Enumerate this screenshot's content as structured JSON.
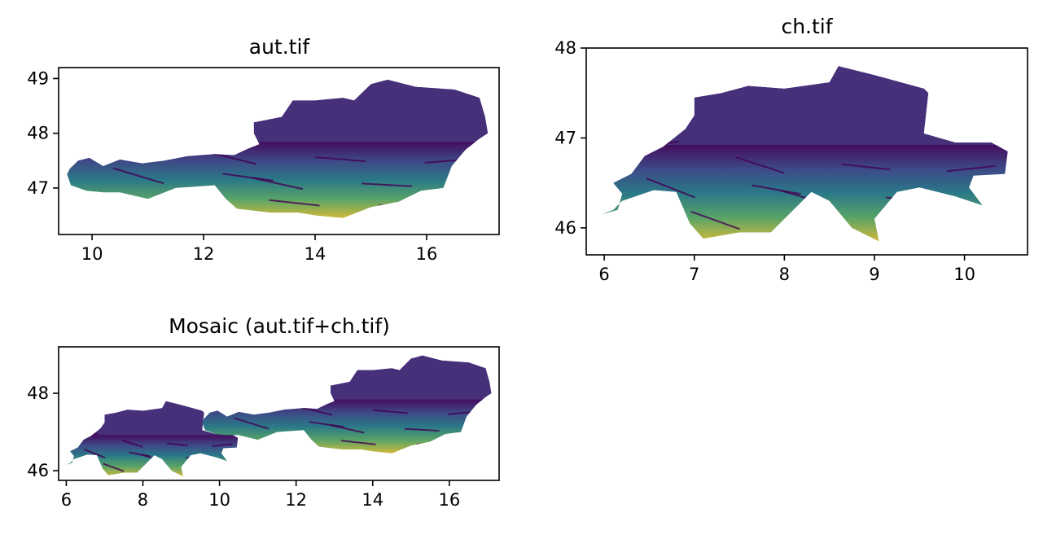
{
  "colors": {
    "colormap": "viridis",
    "viridis_stops": [
      "#440154",
      "#3b528b",
      "#21918c",
      "#5ec962",
      "#fde725"
    ],
    "lowland_tone": "#46307a",
    "background": "#ffffff"
  },
  "panels": [
    {
      "title": "aut.tif",
      "xlim": [
        9.4,
        17.3
      ],
      "ylim": [
        46.15,
        49.2
      ],
      "xticks": [
        10,
        12,
        14,
        16
      ],
      "yticks": [
        47,
        48,
        49
      ],
      "shapes": [
        [
          [
            9.55,
            47.25
          ],
          [
            9.6,
            47.35
          ],
          [
            9.75,
            47.5
          ],
          [
            9.95,
            47.55
          ],
          [
            10.2,
            47.4
          ],
          [
            10.5,
            47.52
          ],
          [
            10.9,
            47.45
          ],
          [
            11.3,
            47.5
          ],
          [
            11.7,
            47.58
          ],
          [
            12.2,
            47.62
          ],
          [
            12.55,
            47.6
          ],
          [
            12.8,
            47.72
          ],
          [
            13.0,
            47.8
          ],
          [
            12.9,
            48.0
          ],
          [
            12.9,
            48.2
          ],
          [
            13.4,
            48.3
          ],
          [
            13.6,
            48.6
          ],
          [
            14.0,
            48.6
          ],
          [
            14.5,
            48.65
          ],
          [
            14.7,
            48.6
          ],
          [
            15.0,
            48.9
          ],
          [
            15.3,
            48.98
          ],
          [
            15.8,
            48.85
          ],
          [
            16.5,
            48.8
          ],
          [
            16.95,
            48.65
          ],
          [
            17.05,
            48.3
          ],
          [
            17.1,
            48.0
          ],
          [
            16.95,
            47.9
          ],
          [
            16.7,
            47.7
          ],
          [
            16.45,
            47.4
          ],
          [
            16.3,
            47.0
          ],
          [
            15.9,
            46.95
          ],
          [
            15.5,
            46.75
          ],
          [
            15.0,
            46.65
          ],
          [
            14.5,
            46.45
          ],
          [
            14.0,
            46.5
          ],
          [
            13.7,
            46.55
          ],
          [
            13.2,
            46.55
          ],
          [
            12.6,
            46.62
          ],
          [
            12.4,
            46.8
          ],
          [
            12.2,
            47.05
          ],
          [
            11.5,
            47.0
          ],
          [
            11.0,
            46.8
          ],
          [
            10.5,
            46.92
          ],
          [
            10.2,
            46.92
          ],
          [
            9.9,
            46.95
          ],
          [
            9.62,
            47.05
          ]
        ]
      ]
    },
    {
      "title": "ch.tif",
      "xlim": [
        5.8,
        10.7
      ],
      "ylim": [
        45.7,
        48.0
      ],
      "xticks": [
        6,
        7,
        8,
        9,
        10
      ],
      "yticks": [
        46,
        47,
        48
      ],
      "shapes": [
        [
          [
            5.97,
            46.15
          ],
          [
            6.15,
            46.2
          ],
          [
            6.2,
            46.38
          ],
          [
            6.1,
            46.5
          ],
          [
            6.3,
            46.6
          ],
          [
            6.45,
            46.8
          ],
          [
            6.65,
            46.9
          ],
          [
            6.9,
            47.1
          ],
          [
            7.0,
            47.25
          ],
          [
            7.0,
            47.45
          ],
          [
            7.3,
            47.5
          ],
          [
            7.6,
            47.58
          ],
          [
            8.0,
            47.55
          ],
          [
            8.5,
            47.62
          ],
          [
            8.6,
            47.8
          ],
          [
            9.0,
            47.7
          ],
          [
            9.55,
            47.55
          ],
          [
            9.6,
            47.5
          ],
          [
            9.55,
            47.05
          ],
          [
            9.9,
            46.95
          ],
          [
            10.3,
            46.95
          ],
          [
            10.48,
            46.85
          ],
          [
            10.45,
            46.6
          ],
          [
            10.1,
            46.58
          ],
          [
            10.05,
            46.45
          ],
          [
            10.2,
            46.25
          ],
          [
            9.9,
            46.35
          ],
          [
            9.5,
            46.45
          ],
          [
            9.25,
            46.4
          ],
          [
            9.0,
            46.1
          ],
          [
            9.05,
            45.85
          ],
          [
            8.75,
            46.0
          ],
          [
            8.5,
            46.3
          ],
          [
            8.3,
            46.4
          ],
          [
            7.85,
            45.95
          ],
          [
            7.5,
            45.95
          ],
          [
            7.1,
            45.88
          ],
          [
            6.95,
            46.05
          ],
          [
            6.8,
            46.4
          ],
          [
            6.55,
            46.42
          ],
          [
            6.2,
            46.3
          ],
          [
            6.1,
            46.2
          ]
        ]
      ]
    },
    {
      "title": "Mosaic (aut.tif+ch.tif)",
      "xlim": [
        5.8,
        17.3
      ],
      "ylim": [
        45.75,
        49.2
      ],
      "xticks": [
        6,
        8,
        10,
        12,
        14,
        16
      ],
      "yticks": [
        46,
        48
      ],
      "shapes": [
        [
          [
            5.97,
            46.15
          ],
          [
            6.15,
            46.2
          ],
          [
            6.2,
            46.38
          ],
          [
            6.1,
            46.5
          ],
          [
            6.3,
            46.6
          ],
          [
            6.45,
            46.8
          ],
          [
            6.65,
            46.9
          ],
          [
            6.9,
            47.1
          ],
          [
            7.0,
            47.25
          ],
          [
            7.0,
            47.45
          ],
          [
            7.3,
            47.5
          ],
          [
            7.6,
            47.58
          ],
          [
            8.0,
            47.55
          ],
          [
            8.5,
            47.62
          ],
          [
            8.6,
            47.8
          ],
          [
            9.0,
            47.7
          ],
          [
            9.55,
            47.55
          ],
          [
            9.6,
            47.5
          ],
          [
            9.55,
            47.05
          ],
          [
            9.9,
            46.95
          ],
          [
            10.3,
            46.95
          ],
          [
            10.48,
            46.85
          ],
          [
            10.45,
            46.6
          ],
          [
            10.1,
            46.58
          ],
          [
            10.05,
            46.45
          ],
          [
            10.2,
            46.25
          ],
          [
            9.9,
            46.35
          ],
          [
            9.5,
            46.45
          ],
          [
            9.25,
            46.4
          ],
          [
            9.0,
            46.1
          ],
          [
            9.05,
            45.85
          ],
          [
            8.75,
            46.0
          ],
          [
            8.5,
            46.3
          ],
          [
            8.3,
            46.4
          ],
          [
            7.85,
            45.95
          ],
          [
            7.5,
            45.95
          ],
          [
            7.1,
            45.88
          ],
          [
            6.95,
            46.05
          ],
          [
            6.8,
            46.4
          ],
          [
            6.55,
            46.42
          ],
          [
            6.2,
            46.3
          ],
          [
            6.1,
            46.2
          ]
        ],
        [
          [
            9.55,
            47.25
          ],
          [
            9.6,
            47.35
          ],
          [
            9.75,
            47.5
          ],
          [
            9.95,
            47.55
          ],
          [
            10.2,
            47.4
          ],
          [
            10.5,
            47.52
          ],
          [
            10.9,
            47.45
          ],
          [
            11.3,
            47.5
          ],
          [
            11.7,
            47.58
          ],
          [
            12.2,
            47.62
          ],
          [
            12.55,
            47.6
          ],
          [
            12.8,
            47.72
          ],
          [
            13.0,
            47.8
          ],
          [
            12.9,
            48.0
          ],
          [
            12.9,
            48.2
          ],
          [
            13.4,
            48.3
          ],
          [
            13.6,
            48.6
          ],
          [
            14.0,
            48.6
          ],
          [
            14.5,
            48.65
          ],
          [
            14.7,
            48.6
          ],
          [
            15.0,
            48.9
          ],
          [
            15.3,
            48.98
          ],
          [
            15.8,
            48.85
          ],
          [
            16.5,
            48.8
          ],
          [
            16.95,
            48.65
          ],
          [
            17.05,
            48.3
          ],
          [
            17.1,
            48.0
          ],
          [
            16.95,
            47.9
          ],
          [
            16.7,
            47.7
          ],
          [
            16.45,
            47.4
          ],
          [
            16.3,
            47.0
          ],
          [
            15.9,
            46.95
          ],
          [
            15.5,
            46.75
          ],
          [
            15.0,
            46.65
          ],
          [
            14.5,
            46.45
          ],
          [
            14.0,
            46.5
          ],
          [
            13.7,
            46.55
          ],
          [
            13.2,
            46.55
          ],
          [
            12.6,
            46.62
          ],
          [
            12.4,
            46.8
          ],
          [
            12.2,
            47.05
          ],
          [
            11.5,
            47.0
          ],
          [
            11.0,
            46.8
          ],
          [
            10.5,
            46.92
          ],
          [
            10.2,
            46.92
          ],
          [
            9.9,
            46.95
          ],
          [
            9.62,
            47.05
          ]
        ]
      ]
    }
  ]
}
